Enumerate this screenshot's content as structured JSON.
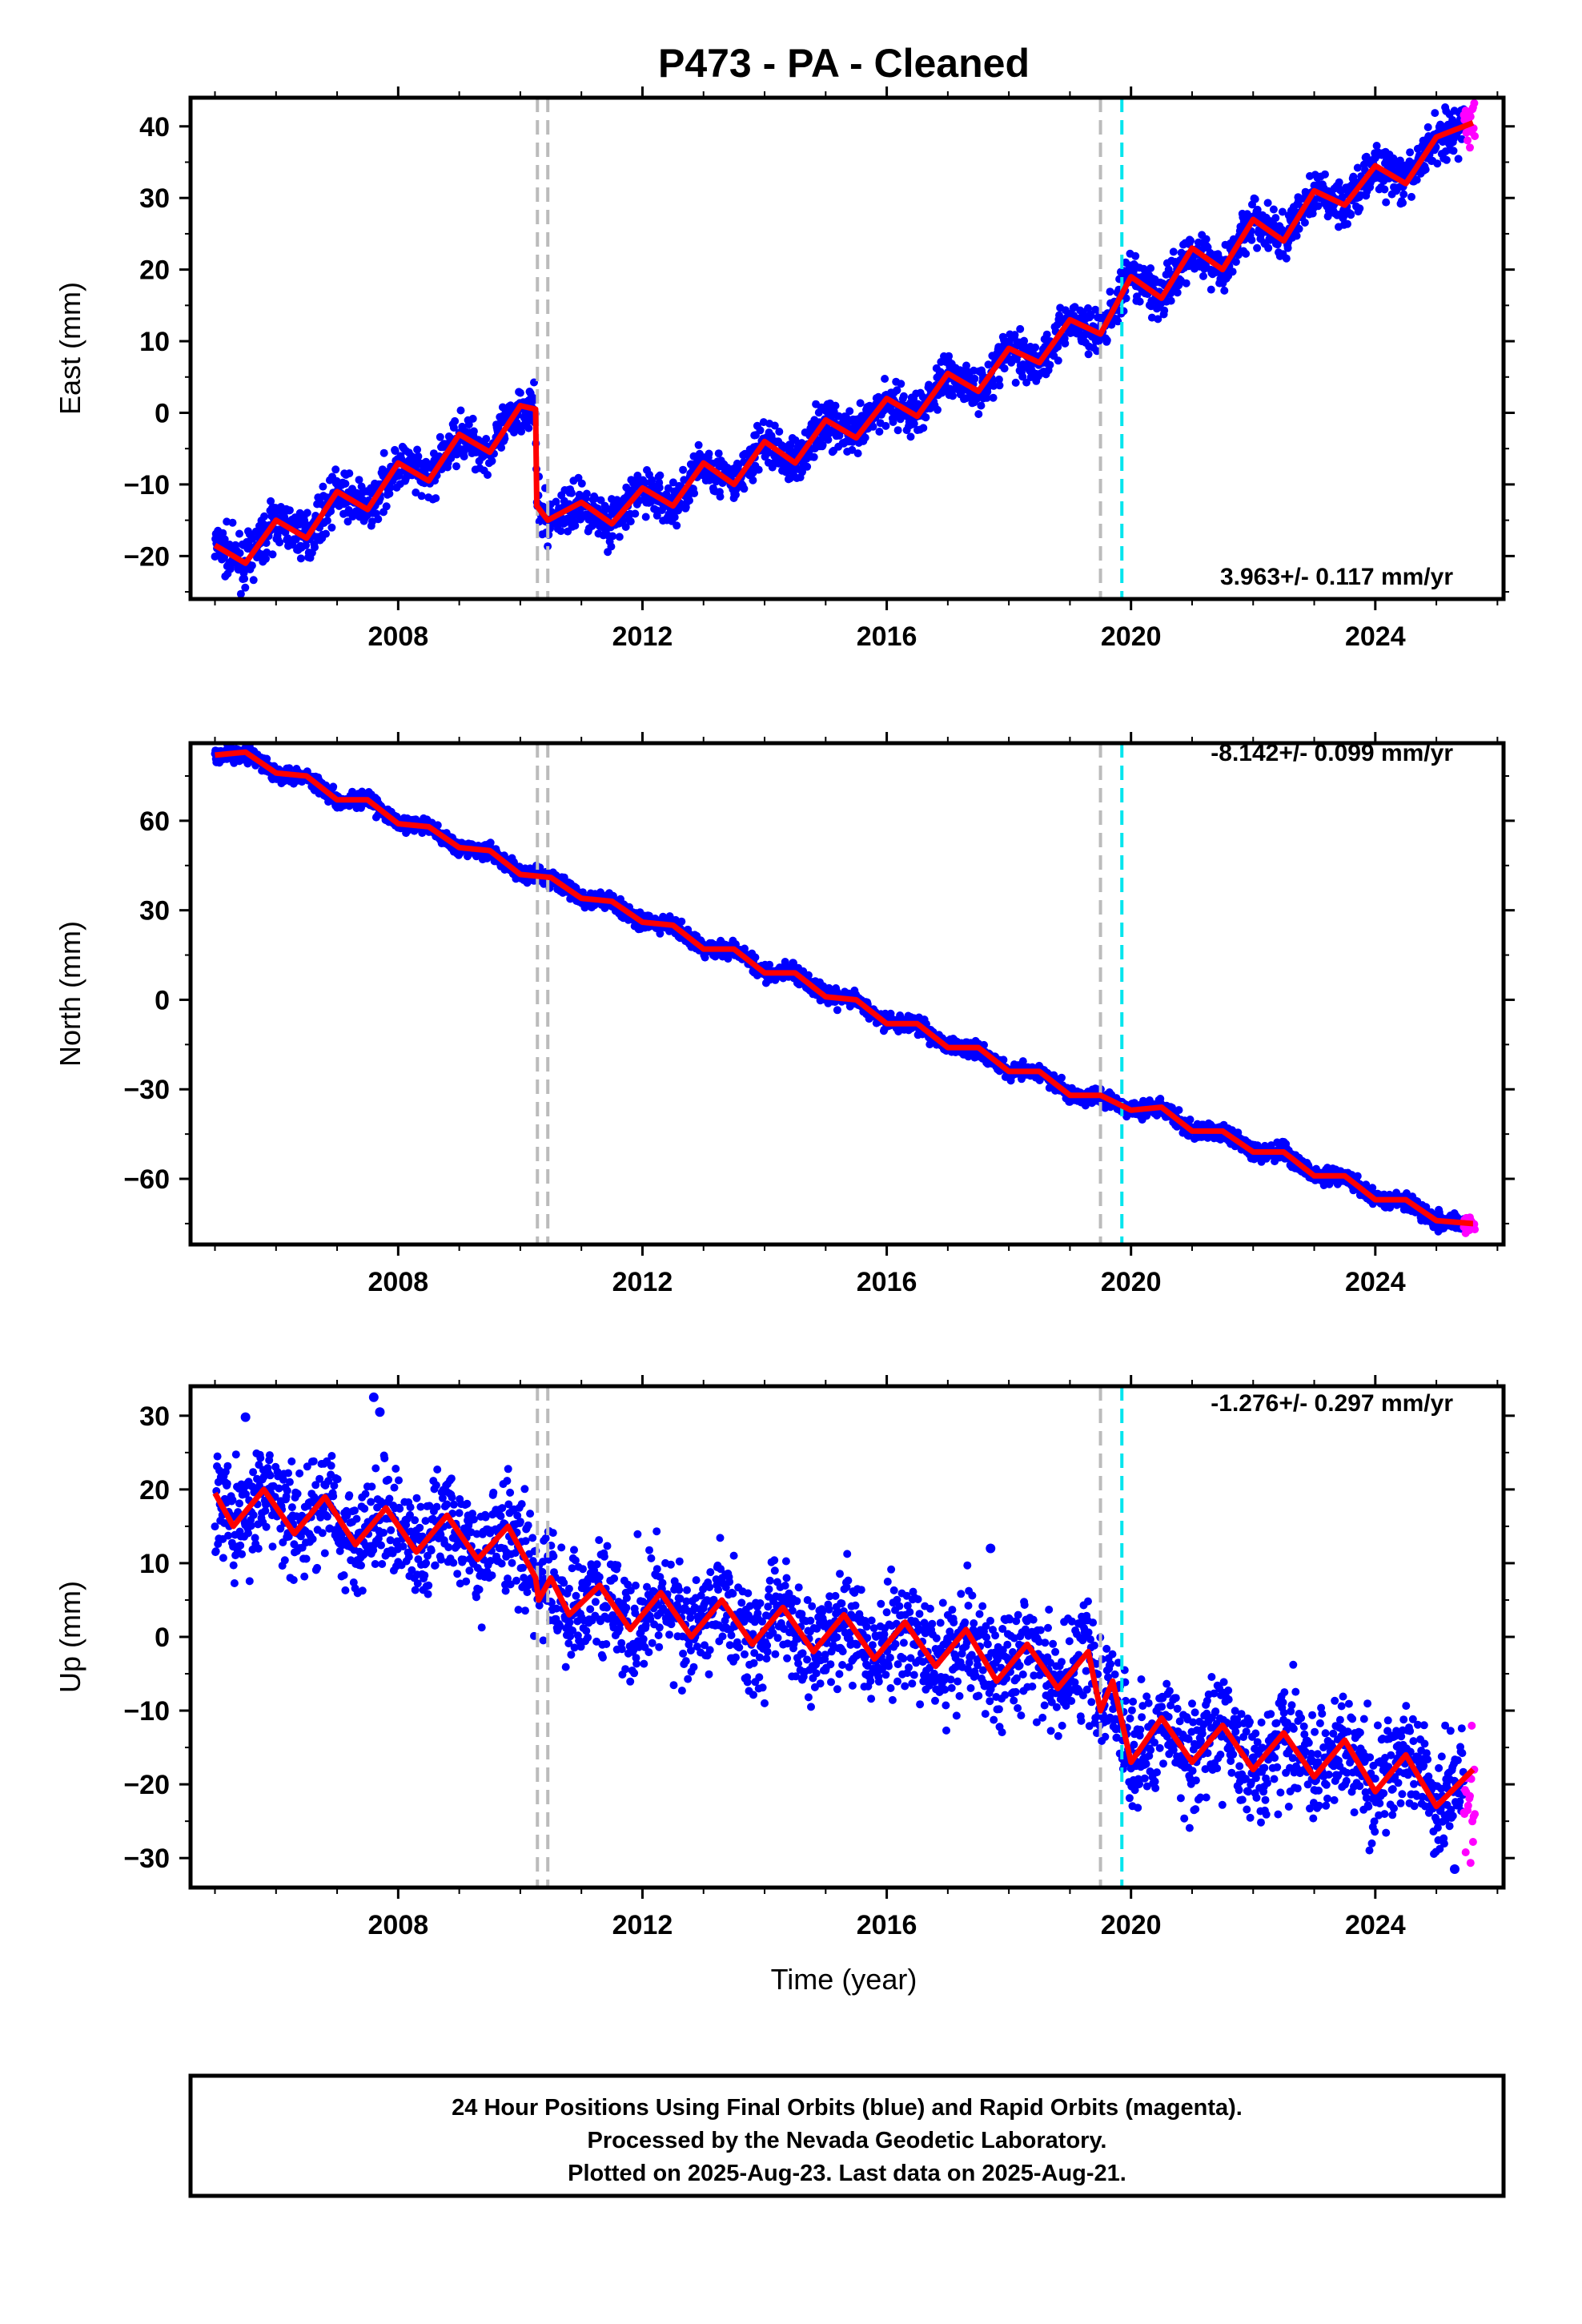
{
  "title": "P473  - PA - Cleaned",
  "xlabel": "Time (year)",
  "footer": {
    "line1": "24 Hour Positions Using Final Orbits (blue) and Rapid Orbits (magenta).",
    "line2": "Processed by the Nevada Geodetic Laboratory.",
    "line3": "Plotted on 2025-Aug-23. Last data on 2025-Aug-21."
  },
  "colors": {
    "final_orbits": "#0000ff",
    "rapid_orbits": "#ff00ff",
    "model_fit": "#ff0000",
    "equipment_change": "#bbbbbb",
    "earthquake_offset": "#00e5ee",
    "frame": "#000000"
  },
  "chart_data": [
    {
      "type": "scatter",
      "name": "East",
      "ylabel": "East (mm)",
      "rate_label": "3.963+/- 0.117 mm/yr",
      "xlim": [
        2004.6,
        2026.1
      ],
      "ylim": [
        -26,
        44
      ],
      "yticks": [
        -20,
        -10,
        0,
        10,
        20,
        30,
        40
      ],
      "xticks": [
        2008,
        2012,
        2016,
        2020,
        2024
      ],
      "grid": false,
      "offset_lines_gray": [
        2010.28,
        2010.45,
        2019.5
      ],
      "offset_lines_cyan": [
        2019.85
      ],
      "fit_points": [
        [
          2005.0,
          -18.5
        ],
        [
          2005.5,
          -21
        ],
        [
          2006.0,
          -15
        ],
        [
          2006.5,
          -17.5
        ],
        [
          2007.0,
          -11
        ],
        [
          2007.5,
          -13.5
        ],
        [
          2008.0,
          -7
        ],
        [
          2008.5,
          -9.5
        ],
        [
          2009.0,
          -3
        ],
        [
          2009.5,
          -5.5
        ],
        [
          2010.0,
          1
        ],
        [
          2010.25,
          0.5
        ],
        [
          2010.27,
          -13
        ],
        [
          2010.45,
          -15
        ],
        [
          2011.0,
          -12.5
        ],
        [
          2011.5,
          -15.5
        ],
        [
          2012.0,
          -10.5
        ],
        [
          2012.5,
          -13
        ],
        [
          2013.0,
          -7
        ],
        [
          2013.5,
          -10
        ],
        [
          2014.0,
          -4
        ],
        [
          2014.5,
          -7
        ],
        [
          2015.0,
          -1
        ],
        [
          2015.5,
          -3.5
        ],
        [
          2016.0,
          2
        ],
        [
          2016.5,
          -0.5
        ],
        [
          2017.0,
          5.5
        ],
        [
          2017.5,
          3
        ],
        [
          2018.0,
          9
        ],
        [
          2018.5,
          7
        ],
        [
          2019.0,
          13
        ],
        [
          2019.5,
          11
        ],
        [
          2020.0,
          19
        ],
        [
          2020.5,
          16
        ],
        [
          2021.0,
          23
        ],
        [
          2021.5,
          20
        ],
        [
          2022.0,
          27
        ],
        [
          2022.5,
          24
        ],
        [
          2023.0,
          31
        ],
        [
          2023.5,
          29
        ],
        [
          2024.0,
          34.5
        ],
        [
          2024.5,
          32
        ],
        [
          2025.0,
          38.5
        ],
        [
          2025.6,
          40.5
        ]
      ],
      "scatter_spread": 1.6,
      "rapid_segment": [
        2025.45,
        2025.63
      ]
    },
    {
      "type": "scatter",
      "name": "North",
      "ylabel": "North (mm)",
      "rate_label": "-8.142+/- 0.099 mm/yr",
      "xlim": [
        2004.6,
        2026.1
      ],
      "ylim": [
        -82,
        86
      ],
      "yticks": [
        -60,
        -30,
        0,
        30,
        60
      ],
      "xticks": [
        2008,
        2012,
        2016,
        2020,
        2024
      ],
      "grid": false,
      "offset_lines_gray": [
        2010.28,
        2010.45,
        2019.5
      ],
      "offset_lines_cyan": [
        2019.85
      ],
      "fit_points": [
        [
          2005.0,
          82
        ],
        [
          2005.5,
          83
        ],
        [
          2006.0,
          76
        ],
        [
          2006.5,
          75
        ],
        [
          2007.0,
          67
        ],
        [
          2007.5,
          67
        ],
        [
          2008.0,
          59
        ],
        [
          2008.5,
          58
        ],
        [
          2009.0,
          51
        ],
        [
          2009.5,
          50
        ],
        [
          2010.0,
          42
        ],
        [
          2010.5,
          41
        ],
        [
          2011.0,
          34
        ],
        [
          2011.5,
          33
        ],
        [
          2012.0,
          26
        ],
        [
          2012.5,
          25
        ],
        [
          2013.0,
          17
        ],
        [
          2013.5,
          17
        ],
        [
          2014.0,
          9
        ],
        [
          2014.5,
          9
        ],
        [
          2015.0,
          1
        ],
        [
          2015.5,
          0
        ],
        [
          2016.0,
          -8
        ],
        [
          2016.5,
          -8
        ],
        [
          2017.0,
          -16
        ],
        [
          2017.5,
          -16
        ],
        [
          2018.0,
          -24
        ],
        [
          2018.5,
          -24
        ],
        [
          2019.0,
          -32
        ],
        [
          2019.5,
          -32
        ],
        [
          2020.0,
          -37
        ],
        [
          2020.5,
          -36
        ],
        [
          2021.0,
          -44
        ],
        [
          2021.5,
          -44
        ],
        [
          2022.0,
          -51
        ],
        [
          2022.5,
          -51
        ],
        [
          2023.0,
          -59
        ],
        [
          2023.5,
          -59
        ],
        [
          2024.0,
          -67
        ],
        [
          2024.5,
          -67
        ],
        [
          2025.0,
          -74
        ],
        [
          2025.6,
          -75
        ]
      ],
      "scatter_spread": 1.4,
      "rapid_segment": [
        2025.45,
        2025.63
      ]
    },
    {
      "type": "scatter",
      "name": "Up",
      "ylabel": "Up (mm)",
      "rate_label": "-1.276+/- 0.297 mm/yr",
      "xlim": [
        2004.6,
        2026.1
      ],
      "ylim": [
        -34,
        34
      ],
      "yticks": [
        -30,
        -20,
        -10,
        0,
        10,
        20,
        30
      ],
      "xticks": [
        2008,
        2012,
        2016,
        2020,
        2024
      ],
      "grid": false,
      "offset_lines_gray": [
        2010.28,
        2010.45,
        2019.5
      ],
      "offset_lines_cyan": [
        2019.85
      ],
      "fit_points": [
        [
          2005.0,
          19.5
        ],
        [
          2005.3,
          15
        ],
        [
          2005.8,
          20
        ],
        [
          2006.3,
          14
        ],
        [
          2006.8,
          19
        ],
        [
          2007.3,
          12.5
        ],
        [
          2007.8,
          17.5
        ],
        [
          2008.3,
          11.5
        ],
        [
          2008.8,
          16.5
        ],
        [
          2009.3,
          10.5
        ],
        [
          2009.8,
          15
        ],
        [
          2010.25,
          8
        ],
        [
          2010.3,
          5
        ],
        [
          2010.5,
          8
        ],
        [
          2010.8,
          3
        ],
        [
          2011.3,
          7
        ],
        [
          2011.8,
          1
        ],
        [
          2012.3,
          6
        ],
        [
          2012.8,
          0
        ],
        [
          2013.3,
          5
        ],
        [
          2013.8,
          -1
        ],
        [
          2014.3,
          4
        ],
        [
          2014.8,
          -2
        ],
        [
          2015.3,
          3
        ],
        [
          2015.8,
          -3
        ],
        [
          2016.3,
          2
        ],
        [
          2016.8,
          -4
        ],
        [
          2017.3,
          1
        ],
        [
          2017.8,
          -6
        ],
        [
          2018.3,
          -1
        ],
        [
          2018.8,
          -7
        ],
        [
          2019.3,
          -2
        ],
        [
          2019.5,
          -10
        ],
        [
          2019.7,
          -6
        ],
        [
          2020.0,
          -17
        ],
        [
          2020.5,
          -11
        ],
        [
          2021.0,
          -17
        ],
        [
          2021.5,
          -12
        ],
        [
          2022.0,
          -18
        ],
        [
          2022.5,
          -13
        ],
        [
          2023.0,
          -19
        ],
        [
          2023.5,
          -14
        ],
        [
          2024.0,
          -21
        ],
        [
          2024.5,
          -16
        ],
        [
          2025.0,
          -23
        ],
        [
          2025.6,
          -18
        ]
      ],
      "scatter_spread": 3.8,
      "rapid_segment": [
        2025.45,
        2025.63
      ],
      "outliers": [
        [
          2005.5,
          29.8
        ],
        [
          2007.6,
          32.5
        ],
        [
          2007.7,
          30.5
        ],
        [
          2017.7,
          12
        ],
        [
          2025.3,
          -31.5
        ]
      ]
    }
  ]
}
